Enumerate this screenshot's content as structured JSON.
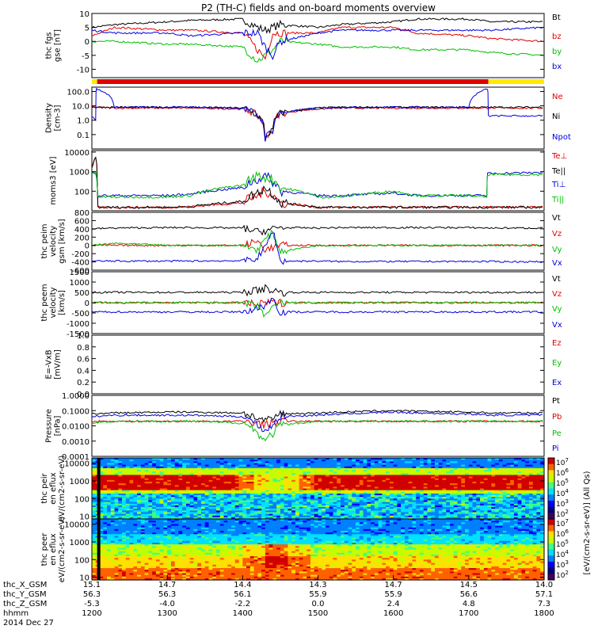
{
  "title": "P2 (TH-C) fields and on-board moments overview",
  "date_label": "2014 Dec 27",
  "colors": {
    "black": "#000000",
    "red": "#e00000",
    "green": "#00c000",
    "blue": "#0000e0",
    "yellow": "#ffea00"
  },
  "status_bar": {
    "segments": [
      {
        "from": 1200,
        "to": 1207,
        "color": "yellow"
      },
      {
        "from": 1207,
        "to": 1726,
        "color": "red"
      },
      {
        "from": 1726,
        "to": 1800,
        "color": "yellow"
      }
    ]
  },
  "ephemeris": {
    "rows": [
      {
        "label": "thc_X_GSM",
        "values": [
          "15.1",
          "14.7",
          "14.4",
          "14.3",
          "14.7",
          "14.5",
          "14.0"
        ]
      },
      {
        "label": "thc_Y_GSM",
        "values": [
          "56.3",
          "56.3",
          "56.1",
          "55.9",
          "55.9",
          "56.6",
          "57.1"
        ]
      },
      {
        "label": "thc_Z_GSM",
        "values": [
          "-5.3",
          "-4.0",
          "-2.2",
          "0.0",
          "2.4",
          "4.8",
          "7.3"
        ]
      },
      {
        "label": "hhmm",
        "values": [
          "1200",
          "1300",
          "1400",
          "1500",
          "1600",
          "1700",
          "1800"
        ]
      }
    ]
  },
  "colorbar": {
    "label": "[eV/(cm2-s-sr-eV)] (All Qs)",
    "ticks_top": [
      "10^7",
      "10^6",
      "10^5",
      "10^4",
      "10^3",
      "10^2"
    ],
    "ticks_bottom": [
      "10^7",
      "10^6",
      "10^5",
      "10^4",
      "10^3",
      "10^2"
    ]
  },
  "chart_data": [
    {
      "type": "line",
      "ylabel": "thc fgs gse [nT]",
      "ylim": [
        -13,
        10
      ],
      "yticks": [
        "10",
        "5",
        "0",
        "-5",
        "-10"
      ],
      "x": [
        1200,
        1230,
        1300,
        1330,
        1400,
        1420,
        1430,
        1440,
        1450,
        1500,
        1530,
        1600,
        1630,
        1700,
        1730,
        1800
      ],
      "series": [
        {
          "name": "Bt",
          "color": "black",
          "values": [
            5,
            6,
            7,
            7.5,
            8,
            5,
            4,
            5,
            6,
            5,
            6,
            7,
            8,
            8,
            7,
            7
          ]
        },
        {
          "name": "bz",
          "color": "red",
          "values": [
            2,
            5,
            4,
            4,
            3,
            -3,
            -6,
            3,
            3,
            3,
            5,
            5,
            3,
            2,
            1,
            0
          ]
        },
        {
          "name": "by",
          "color": "green",
          "values": [
            0,
            0,
            -1,
            -1,
            -2,
            -7,
            -5,
            -3,
            0,
            -1,
            -2,
            -2,
            -3,
            -3,
            -4,
            -5
          ]
        },
        {
          "name": "bx",
          "color": "blue",
          "values": [
            4,
            3,
            3,
            2,
            3,
            3,
            -2,
            -5,
            0,
            3,
            4,
            4,
            4,
            4,
            4,
            5
          ]
        }
      ]
    },
    {
      "type": "line",
      "ylabel": "Density [cm-3]",
      "yscale": "log",
      "ylim": [
        0.01,
        200
      ],
      "yticks": [
        "100.0",
        "10.0",
        "1.0",
        "0.1"
      ],
      "x": [
        1200,
        1205,
        1206,
        1230,
        1300,
        1330,
        1400,
        1415,
        1430,
        1440,
        1450,
        1500,
        1530,
        1600,
        1630,
        1700,
        1725,
        1726,
        1800
      ],
      "series": [
        {
          "name": "Ne",
          "color": "red",
          "values": [
            8,
            8,
            8,
            7,
            7,
            7,
            6,
            3,
            0.05,
            0.2,
            3,
            6,
            7,
            7,
            7,
            7,
            7,
            7,
            7
          ]
        },
        {
          "name": "Ni",
          "color": "black",
          "values": [
            8,
            8,
            8,
            8,
            8,
            8,
            7,
            3,
            0.05,
            0.2,
            3,
            7,
            8,
            8,
            8,
            8,
            8,
            8,
            8
          ]
        },
        {
          "name": "Npot",
          "color": "blue",
          "values": [
            2,
            1,
            150,
            8,
            8,
            8,
            7,
            3,
            0.05,
            0.2,
            3,
            7,
            8,
            8,
            8,
            8,
            150,
            2,
            2
          ]
        }
      ]
    },
    {
      "type": "line",
      "ylabel": "moms3 [eV]",
      "yscale": "log",
      "ylim": [
        10,
        12000
      ],
      "yticks": [
        "10000",
        "1000",
        "100"
      ],
      "x": [
        1200,
        1205,
        1208,
        1230,
        1300,
        1330,
        1400,
        1420,
        1430,
        1440,
        1450,
        1500,
        1530,
        1600,
        1630,
        1700,
        1724,
        1725,
        1800
      ],
      "series": [
        {
          "name": "Te⊥",
          "color": "red",
          "values": [
            1500,
            5000,
            15,
            15,
            15,
            16,
            25,
            60,
            100,
            60,
            25,
            15,
            15,
            15,
            15,
            15,
            15,
            15,
            15
          ]
        },
        {
          "name": "Te||",
          "color": "black",
          "values": [
            1500,
            5000,
            15,
            15,
            15,
            16,
            30,
            80,
            150,
            70,
            25,
            15,
            15,
            15,
            15,
            15,
            15,
            15,
            15
          ]
        },
        {
          "name": "Ti⊥",
          "color": "blue",
          "values": [
            900,
            900,
            60,
            60,
            60,
            70,
            150,
            400,
            600,
            300,
            100,
            60,
            60,
            80,
            60,
            60,
            60,
            800,
            900
          ]
        },
        {
          "name": "Ti||",
          "color": "green",
          "values": [
            900,
            900,
            50,
            50,
            50,
            60,
            200,
            600,
            500,
            400,
            150,
            50,
            50,
            100,
            60,
            60,
            50,
            700,
            700
          ]
        }
      ]
    },
    {
      "type": "line",
      "ylabel": "thc peim velocity gsm [km/s]",
      "ylim": [
        -600,
        800
      ],
      "yticks": [
        "800",
        "600",
        "400",
        "200",
        "0",
        "-200",
        "-400",
        "-600"
      ],
      "x": [
        1200,
        1230,
        1300,
        1330,
        1400,
        1420,
        1430,
        1440,
        1450,
        1500,
        1530,
        1600,
        1630,
        1700,
        1730,
        1800
      ],
      "series": [
        {
          "name": "Vt",
          "color": "black",
          "values": [
            400,
            420,
            430,
            430,
            420,
            330,
            350,
            400,
            430,
            420,
            430,
            430,
            430,
            430,
            420,
            420
          ]
        },
        {
          "name": "Vz",
          "color": "red",
          "values": [
            0,
            0,
            0,
            0,
            0,
            100,
            -100,
            -50,
            0,
            0,
            0,
            0,
            0,
            0,
            0,
            0
          ]
        },
        {
          "name": "Vy",
          "color": "green",
          "values": [
            0,
            50,
            0,
            0,
            0,
            -100,
            150,
            300,
            -150,
            0,
            0,
            0,
            0,
            0,
            0,
            0
          ]
        },
        {
          "name": "Vx",
          "color": "blue",
          "values": [
            -380,
            -380,
            -380,
            -380,
            -370,
            -300,
            -50,
            380,
            -380,
            -380,
            -390,
            -390,
            -390,
            -390,
            -390,
            -400
          ]
        }
      ]
    },
    {
      "type": "line",
      "ylabel": "thc peem velocity [km/s]",
      "ylim": [
        -1500,
        1500
      ],
      "yticks": [
        "1500",
        "1000",
        "500",
        "0",
        "-500",
        "-1000",
        "-1500"
      ],
      "x": [
        1200,
        1230,
        1300,
        1330,
        1400,
        1420,
        1430,
        1440,
        1450,
        1500,
        1530,
        1600,
        1630,
        1700,
        1730,
        1800
      ],
      "series": [
        {
          "name": "Vt",
          "color": "black",
          "values": [
            500,
            500,
            500,
            500,
            500,
            600,
            700,
            600,
            500,
            500,
            500,
            500,
            500,
            500,
            500,
            500
          ]
        },
        {
          "name": "Vz",
          "color": "red",
          "values": [
            0,
            0,
            0,
            0,
            0,
            -100,
            0,
            0,
            0,
            0,
            0,
            0,
            0,
            0,
            0,
            0
          ]
        },
        {
          "name": "Vy",
          "color": "green",
          "values": [
            0,
            0,
            0,
            0,
            0,
            -200,
            -600,
            -300,
            0,
            0,
            0,
            0,
            0,
            0,
            0,
            0
          ]
        },
        {
          "name": "Vx",
          "color": "blue",
          "values": [
            -450,
            -450,
            -450,
            -450,
            -450,
            -300,
            -100,
            200,
            -450,
            -450,
            -450,
            -450,
            -450,
            -450,
            -450,
            -450
          ]
        }
      ]
    },
    {
      "type": "line",
      "ylabel": "E=-VxB [mV/m]",
      "ylim": [
        0,
        1
      ],
      "yticks": [
        "1.0",
        "0.8",
        "0.6",
        "0.4",
        "0.2",
        "0.0"
      ],
      "series": [
        {
          "name": "Ez",
          "color": "red",
          "values": []
        },
        {
          "name": "Ey",
          "color": "green",
          "values": []
        },
        {
          "name": "Ex",
          "color": "blue",
          "values": []
        }
      ]
    },
    {
      "type": "line",
      "ylabel": "Pressure [nPa]",
      "yscale": "log",
      "ylim": [
        0.0001,
        1
      ],
      "yticks": [
        "1.0000",
        "0.1000",
        "0.0100",
        "0.0010",
        "0.0001"
      ],
      "x": [
        1200,
        1230,
        1300,
        1330,
        1400,
        1420,
        1430,
        1440,
        1450,
        1500,
        1530,
        1600,
        1630,
        1700,
        1730,
        1800
      ],
      "series": [
        {
          "name": "Pt",
          "color": "black",
          "values": [
            0.06,
            0.07,
            0.08,
            0.08,
            0.07,
            0.03,
            0.02,
            0.03,
            0.06,
            0.07,
            0.08,
            0.1,
            0.09,
            0.08,
            0.07,
            0.07
          ]
        },
        {
          "name": "Pb",
          "color": "red",
          "values": [
            0.02,
            0.02,
            0.02,
            0.02,
            0.02,
            0.015,
            0.012,
            0.015,
            0.02,
            0.02,
            0.02,
            0.02,
            0.02,
            0.02,
            0.02,
            0.02
          ]
        },
        {
          "name": "Pe",
          "color": "green",
          "values": [
            0.015,
            0.02,
            0.02,
            0.02,
            0.015,
            0.003,
            0.001,
            0.003,
            0.01,
            0.02,
            0.02,
            0.02,
            0.02,
            0.02,
            0.02,
            0.02
          ]
        },
        {
          "name": "Pi",
          "color": "blue",
          "values": [
            0.04,
            0.05,
            0.05,
            0.05,
            0.04,
            0.01,
            0.005,
            0.01,
            0.04,
            0.05,
            0.06,
            0.08,
            0.07,
            0.06,
            0.05,
            0.05
          ]
        }
      ]
    },
    {
      "type": "heatmap",
      "ylabel": "thc peir en eflux eV/(cm2-s-sr-eV)",
      "yscale": "log",
      "ylim": [
        7,
        20000
      ],
      "yticks": [
        "10000",
        "1000",
        "100",
        "10"
      ],
      "note_band_center_eV": [
        1200,
        1000
      ],
      "bands": [
        {
          "from_eV": 500,
          "to_eV": 2000,
          "level": 7
        },
        {
          "from_eV": 200,
          "to_eV": 500,
          "level": 5
        },
        {
          "from_eV": 2000,
          "to_eV": 5000,
          "level": 5
        },
        {
          "from_eV": 7,
          "to_eV": 200,
          "level": 3
        }
      ]
    },
    {
      "type": "heatmap",
      "ylabel": "thc peer en eflux eV/(cm2-s-sr-eV)",
      "yscale": "log",
      "ylim": [
        7,
        20000
      ],
      "yticks": [
        "10000",
        "1000",
        "100",
        "10"
      ],
      "bands": [
        {
          "from_eV": 7,
          "to_eV": 30,
          "level": 7
        },
        {
          "from_eV": 30,
          "to_eV": 150,
          "level": 6
        },
        {
          "from_eV": 150,
          "to_eV": 800,
          "level": 5
        },
        {
          "from_eV": 800,
          "to_eV": 3000,
          "level": 3
        },
        {
          "from_eV": 3000,
          "to_eV": 20000,
          "level": 2
        }
      ]
    }
  ]
}
